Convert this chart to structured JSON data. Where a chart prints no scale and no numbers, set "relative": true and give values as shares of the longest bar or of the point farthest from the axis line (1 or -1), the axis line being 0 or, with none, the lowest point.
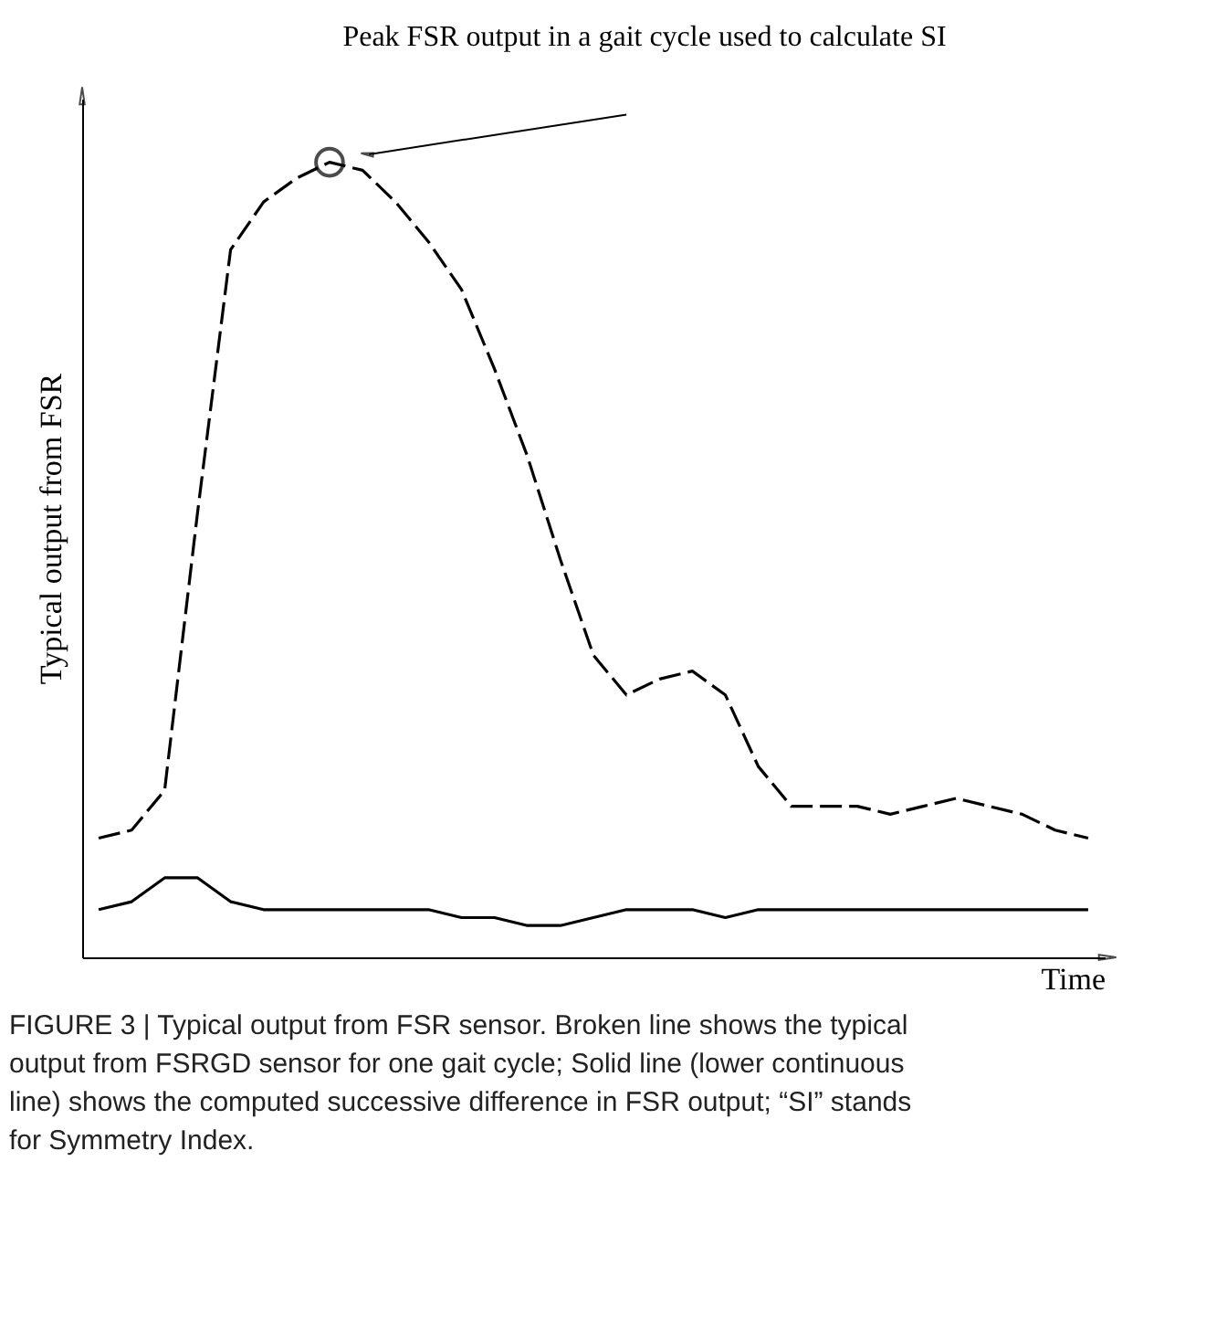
{
  "chart_data": {
    "type": "line",
    "relative": true,
    "xlabel": "Time",
    "ylabel": "Typical output from FSR",
    "categories": [
      null,
      null,
      null,
      null,
      null,
      null,
      null,
      null,
      null,
      null,
      null,
      null,
      null,
      null,
      null,
      null,
      null,
      null,
      null,
      null,
      null,
      null,
      null,
      null,
      null,
      null,
      null,
      null,
      null,
      null,
      null
    ],
    "series": [
      {
        "color": "#000000",
        "line_style": "dashed",
        "values": [
          0.15,
          0.16,
          0.21,
          0.56,
          0.89,
          0.95,
          0.98,
          1.0,
          0.99,
          0.95,
          0.9,
          0.84,
          0.74,
          0.63,
          0.5,
          0.38,
          0.33,
          0.35,
          0.36,
          0.33,
          0.24,
          0.19,
          0.19,
          0.19,
          0.18,
          0.19,
          0.2,
          0.19,
          0.18,
          0.16,
          0.15
        ]
      },
      {
        "color": "#000000",
        "line_style": "solid",
        "values": [
          0.06,
          0.07,
          0.1,
          0.1,
          0.07,
          0.06,
          0.06,
          0.06,
          0.06,
          0.06,
          0.06,
          0.05,
          0.05,
          0.04,
          0.04,
          0.05,
          0.06,
          0.06,
          0.06,
          0.05,
          0.06,
          0.06,
          0.06,
          0.06,
          0.06,
          0.06,
          0.06,
          0.06,
          0.06,
          0.06,
          0.06
        ]
      }
    ],
    "annotations": [
      "Peak FSR output in a gait cycle used to calculate SI",
      "FIGURE 3 | Typical output from FSR sensor. Broken line shows the typical output from FSRGD sensor for one gait cycle; Solid line (lower continuous line) shows the computed successive difference in FSR output; “SI” stands for Symmetry Index."
    ],
    "grid": false,
    "tick_labels": false
  }
}
